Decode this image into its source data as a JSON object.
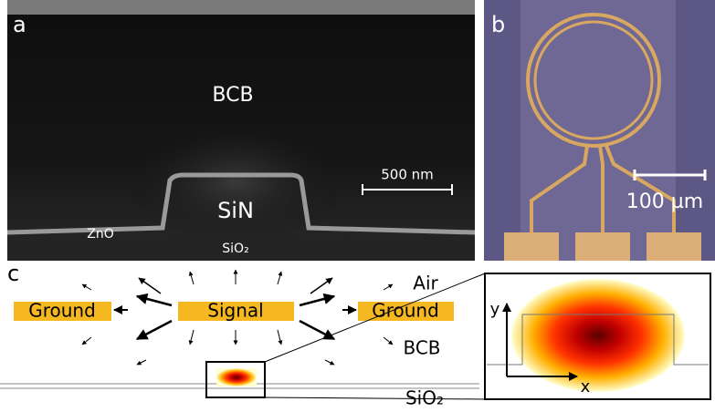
{
  "panel_a": {
    "label": "a",
    "top_material": "BCB",
    "core": "SiN",
    "layer": "ZnO",
    "substrate": "SiO₂",
    "scale_bar": "500 nm"
  },
  "panel_b": {
    "label": "b",
    "scale_bar": "100 µm"
  },
  "panel_c": {
    "label": "c",
    "air": "Air",
    "electrodes": [
      "Ground",
      "Signal",
      "Ground"
    ],
    "cladding": "BCB",
    "substrate": "SiO₂",
    "axis_y": "y",
    "axis_x": "x"
  }
}
